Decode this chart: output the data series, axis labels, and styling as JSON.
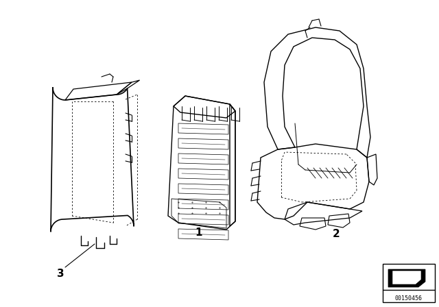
{
  "background_color": "#ffffff",
  "line_color": "#000000",
  "label_1": "1",
  "label_2": "2",
  "label_3": "3",
  "part_number": "00150456",
  "figsize": [
    6.4,
    4.48
  ],
  "dpi": 100
}
